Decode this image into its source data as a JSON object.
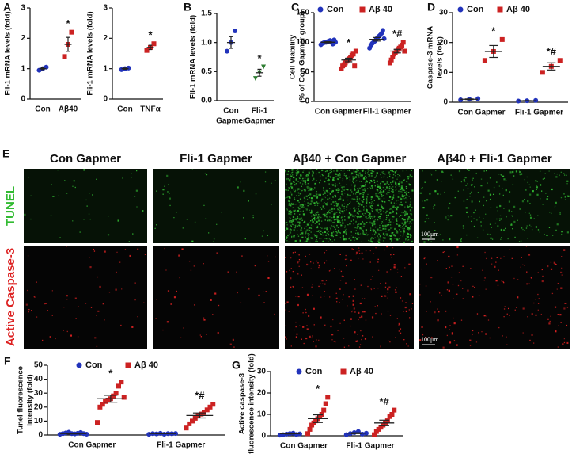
{
  "chart_data": [
    {
      "type": "dot",
      "panel": "A",
      "ylabel": [
        "Fli-1 mRNA levels (fold)"
      ],
      "categories": [
        [
          "Con"
        ],
        [
          "Aβ40"
        ]
      ],
      "ylim": [
        0,
        3
      ],
      "yticks": [
        0,
        1,
        2,
        3
      ],
      "series": [
        {
          "color": "#2233bb",
          "marker": "circle",
          "points": [
            [
              0.95,
              1.0,
              1.05
            ],
            null
          ],
          "means": [
            1.0,
            null
          ],
          "sems": [
            0.03,
            null
          ]
        },
        {
          "color": "#cc2222",
          "marker": "square",
          "points": [
            null,
            [
              1.4,
              1.8,
              2.2
            ]
          ],
          "means": [
            null,
            1.8
          ],
          "sems": [
            null,
            0.23
          ],
          "annotations": [
            null,
            "*"
          ]
        }
      ]
    },
    {
      "type": "dot",
      "ylabel": [
        "Fli-1 mRNA levels (fold)"
      ],
      "categories": [
        [
          "Con"
        ],
        [
          "TNFα"
        ]
      ],
      "ylim": [
        0,
        3
      ],
      "yticks": [
        0,
        1,
        2,
        3
      ],
      "series": [
        {
          "color": "#2233bb",
          "marker": "circle",
          "points": [
            [
              0.97,
              1.0,
              1.02
            ],
            null
          ],
          "means": [
            1.0,
            null
          ],
          "sems": [
            0.02,
            null
          ]
        },
        {
          "color": "#cc2222",
          "marker": "square",
          "points": [
            null,
            [
              1.6,
              1.7,
              1.82
            ]
          ],
          "means": [
            null,
            1.7
          ],
          "sems": [
            null,
            0.07
          ],
          "annotations": [
            null,
            "*"
          ]
        }
      ]
    },
    {
      "type": "dot",
      "panel": "B",
      "ylabel": [
        "Fli-1 mRNA levels (fold)"
      ],
      "categories": [
        [
          "Con",
          "Gapmer"
        ],
        [
          "Fli-1",
          "Gapmer"
        ]
      ],
      "ylim": [
        0,
        1.5
      ],
      "yticks": [
        {
          "value": 0,
          "label": "0.0"
        },
        {
          "value": 0.5,
          "label": "0.5"
        },
        {
          "value": 1,
          "label": "1.0"
        },
        {
          "value": 1.5,
          "label": "1.5"
        }
      ],
      "series": [
        {
          "color": "#2233bb",
          "marker": "circle",
          "points": [
            [
              0.85,
              1.0,
              1.2
            ],
            null
          ],
          "means": [
            1.0,
            null
          ],
          "sems": [
            0.1,
            null
          ]
        },
        {
          "color": "#2e7d32",
          "marker": "triangle",
          "points": [
            null,
            [
              0.38,
              0.48,
              0.58
            ]
          ],
          "means": [
            null,
            0.48
          ],
          "sems": [
            null,
            0.06
          ],
          "annotations": [
            null,
            "*"
          ]
        }
      ]
    },
    {
      "type": "dot",
      "panel": "C",
      "ylabel": [
        "Cell Viability",
        "(% of Con Gapmer group)"
      ],
      "categories": [
        [
          "Con Gapmer"
        ],
        [
          "Fli-1 Gapmer"
        ]
      ],
      "ylim": [
        0,
        150
      ],
      "yticks": [
        0,
        50,
        100,
        150
      ],
      "series": [
        {
          "name": "Con",
          "color": "#2233bb",
          "marker": "circle",
          "points": [
            [
              96,
              98,
              99,
              100,
              100,
              101,
              102,
              103,
              100,
              97,
              104,
              100
            ],
            [
              90,
              95,
              98,
              100,
              102,
              105,
              108,
              110,
              112,
              115,
              120,
              106
            ]
          ],
          "means": [
            100,
            105
          ],
          "sems": [
            1,
            3
          ]
        },
        {
          "name": "Aβ 40",
          "color": "#cc2222",
          "marker": "square",
          "points": [
            [
              55,
              60,
              62,
              65,
              68,
              70,
              72,
              75,
              78,
              80,
              60,
              85
            ],
            [
              65,
              70,
              75,
              80,
              82,
              85,
              88,
              90,
              92,
              95,
              100,
              85
            ]
          ],
          "means": [
            70,
            85
          ],
          "sems": [
            3,
            3
          ],
          "annotations": [
            "*",
            "*#"
          ]
        }
      ]
    },
    {
      "type": "dot",
      "panel": "D",
      "ylabel": [
        "Caspase-3 mRNA",
        "levels (fold)"
      ],
      "categories": [
        [
          "Con Gapmer"
        ],
        [
          "Fli-1 Gapmer"
        ]
      ],
      "ylim": [
        0,
        30
      ],
      "yticks": [
        0,
        10,
        20,
        30
      ],
      "series": [
        {
          "name": "Con",
          "color": "#2233bb",
          "marker": "circle",
          "points": [
            [
              0.8,
              1.0,
              1.2
            ],
            [
              0.4,
              0.5,
              0.6
            ]
          ],
          "means": [
            1.0,
            0.5
          ],
          "sems": [
            0.1,
            0.05
          ]
        },
        {
          "name": "Aβ 40",
          "color": "#cc2222",
          "marker": "square",
          "points": [
            [
              14,
              17,
              21
            ],
            [
              10,
              12,
              14
            ]
          ],
          "means": [
            17,
            12
          ],
          "sems": [
            2,
            1.2
          ],
          "annotations": [
            "*",
            "*#"
          ]
        }
      ]
    },
    {
      "type": "dot",
      "panel": "F",
      "ylabel": [
        "Tunel fluorescence",
        "intensity (fold)"
      ],
      "categories": [
        [
          "Con Gapmer"
        ],
        [
          "Fli-1 Gapmer"
        ]
      ],
      "ylim": [
        0,
        50
      ],
      "yticks": [
        0,
        10,
        20,
        30,
        40,
        50
      ],
      "series": [
        {
          "name": "Con",
          "color": "#2233bb",
          "marker": "circle",
          "points": [
            [
              0.5,
              1,
              1.5,
              2,
              1,
              0.8,
              1.2,
              1.8,
              1,
              0.6
            ],
            [
              0.5,
              1,
              0.8,
              1.2,
              0.6,
              1,
              0.9,
              1.1
            ]
          ],
          "means": [
            1,
            1
          ],
          "sems": [
            0.2,
            0.1
          ]
        },
        {
          "name": "Aβ 40",
          "color": "#cc2222",
          "marker": "square",
          "points": [
            [
              9,
              20,
              22,
              24,
              25,
              26,
              28,
              30,
              35,
              38,
              27
            ],
            [
              5,
              8,
              10,
              12,
              14,
              15,
              16,
              18,
              20,
              22
            ]
          ],
          "means": [
            26,
            14
          ],
          "sems": [
            2.5,
            1.8
          ],
          "annotations": [
            "*",
            "*#"
          ]
        }
      ]
    },
    {
      "type": "dot",
      "panel": "G",
      "ylabel": [
        "Active caspase-3",
        "fluorescence intensity (fold)"
      ],
      "categories": [
        [
          "Con Gapmer"
        ],
        [
          "Fli-1 Gapmer"
        ]
      ],
      "ylim": [
        0,
        30
      ],
      "yticks": [
        0,
        10,
        20,
        30
      ],
      "series": [
        {
          "name": "Con",
          "color": "#2233bb",
          "marker": "circle",
          "points": [
            [
              0.3,
              0.5,
              0.8,
              1,
              1.2,
              0.6,
              0.9
            ],
            [
              0.5,
              1,
              1.5,
              2,
              0.8,
              1.2
            ]
          ],
          "means": [
            1,
            1.2
          ],
          "sems": [
            0.15,
            0.2
          ]
        },
        {
          "name": "Aβ 40",
          "color": "#cc2222",
          "marker": "square",
          "points": [
            [
              1,
              3,
              5,
              6,
              7,
              8,
              9,
              10,
              12,
              15,
              18
            ],
            [
              0.5,
              2,
              3,
              4,
              5,
              6,
              7,
              9,
              10,
              12
            ]
          ],
          "means": [
            8,
            6
          ],
          "sems": [
            1.8,
            1.3
          ],
          "annotations": [
            "*",
            "*#"
          ]
        }
      ]
    }
  ],
  "micrographs": {
    "panel": "E",
    "columns": [
      "Con Gapmer",
      "Fli-1 Gapmer",
      "Aβ40 + Con Gapmer",
      "Aβ40 + Fli-1 Gapmer"
    ],
    "rows": [
      {
        "label": "TUNEL",
        "color": "#33bb33"
      },
      {
        "label": "Active Caspase-3",
        "color": "#dd2222"
      }
    ],
    "scale_bar": "100μm"
  }
}
